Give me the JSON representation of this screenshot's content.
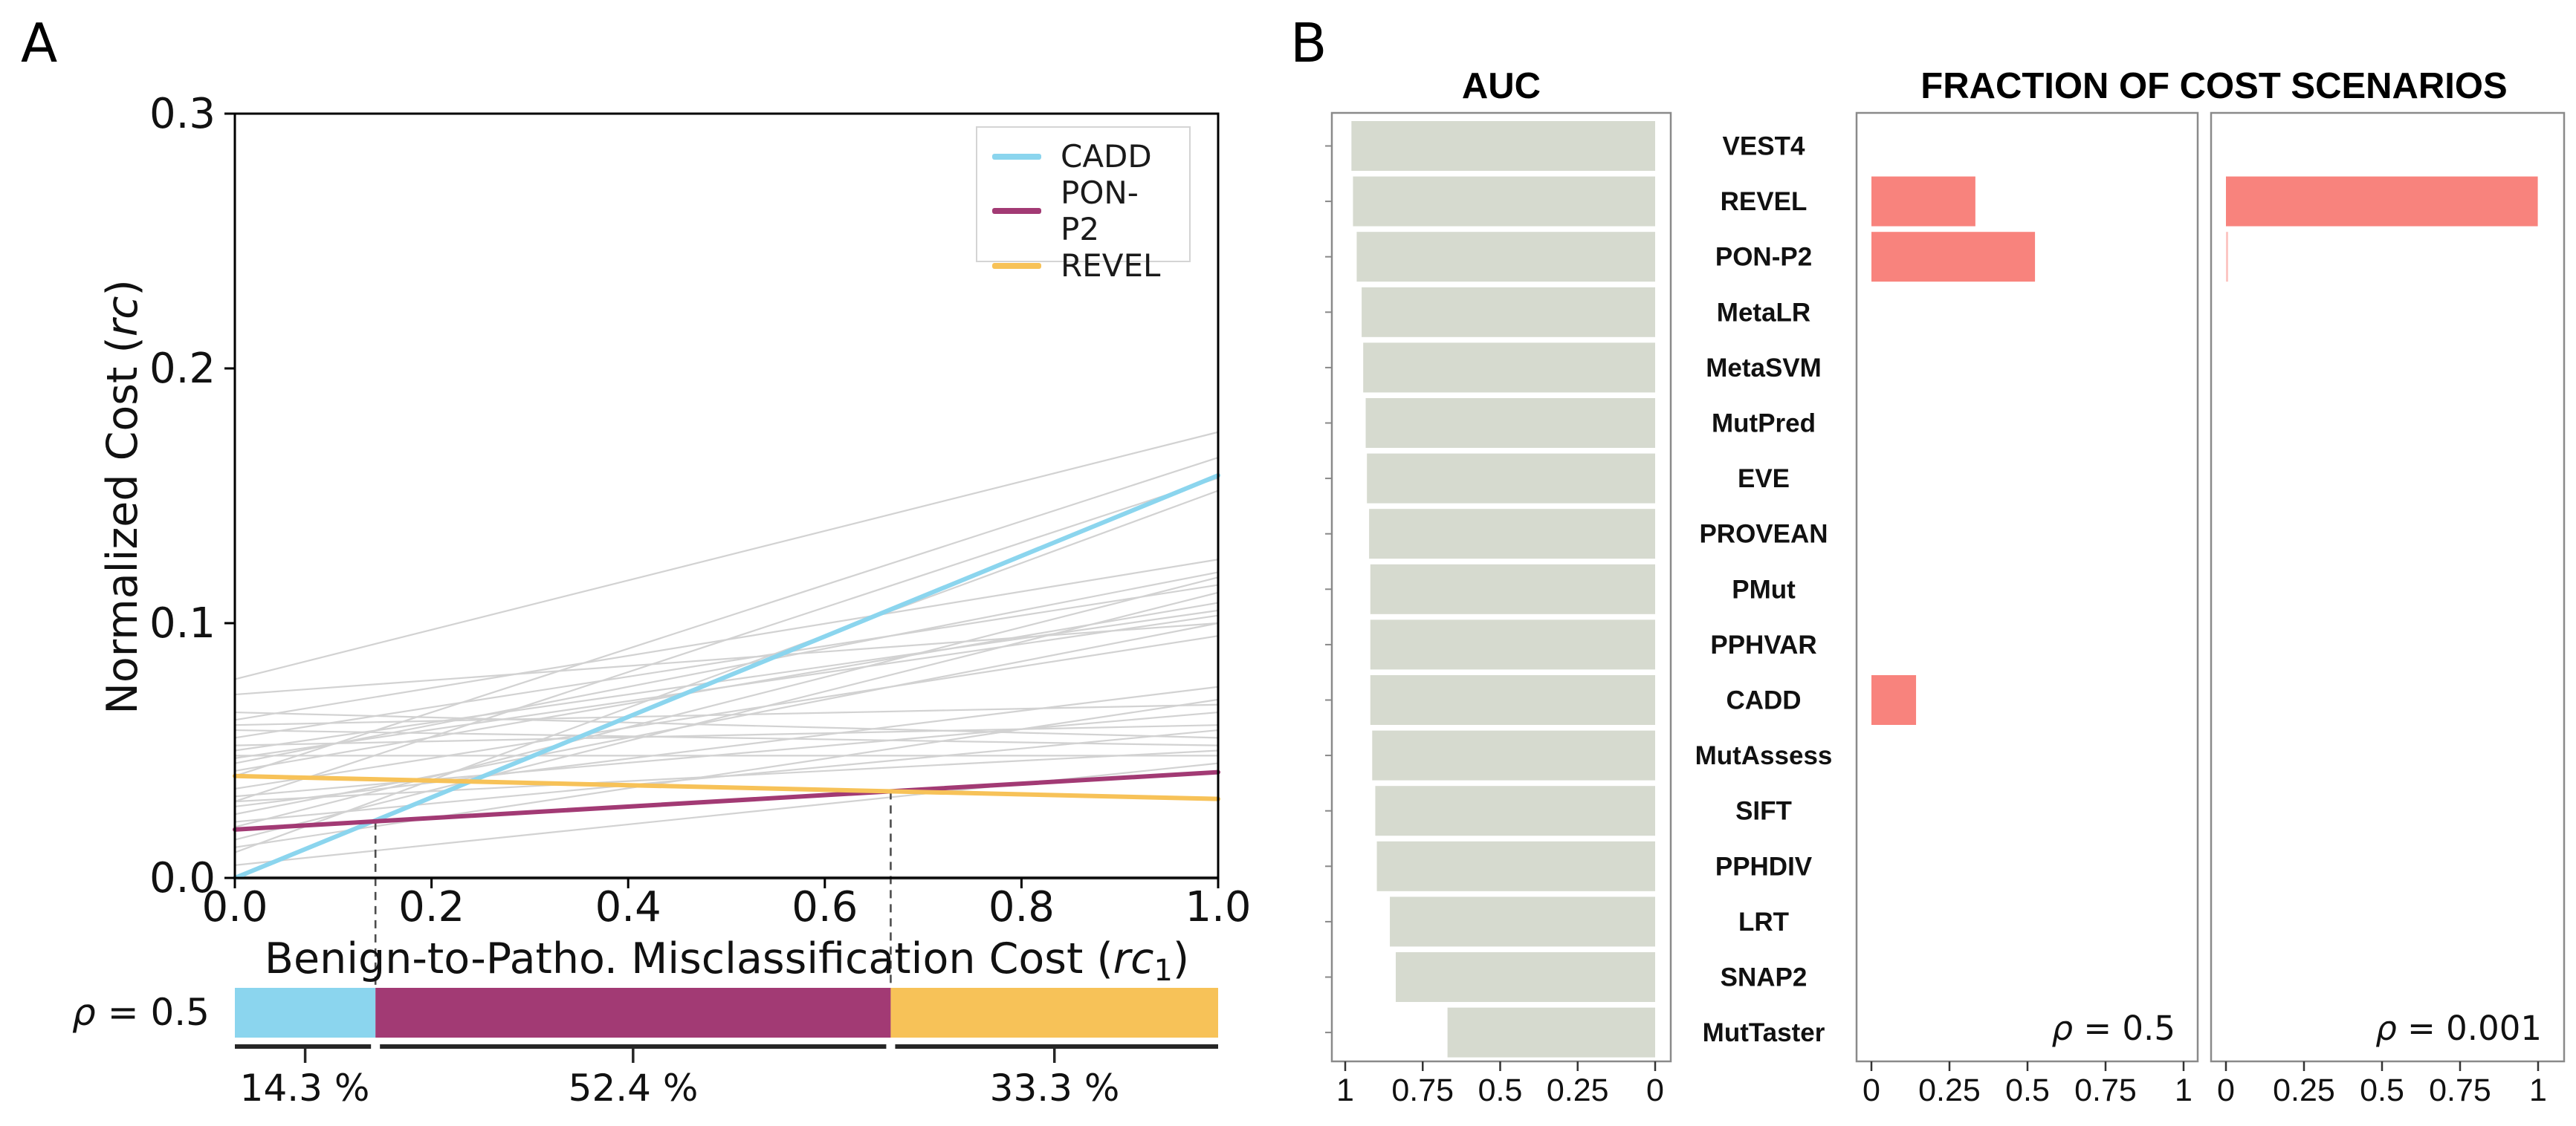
{
  "figure": {
    "panel_a_label": "A",
    "panel_b_label": "B"
  },
  "colors": {
    "cadd": "#8BD5EE",
    "pon_p2": "#A23A74",
    "revel": "#F7C258",
    "salmon": "#F8837D",
    "salmon_faint": "#FADCDA",
    "auc_bar": "#D6DACF",
    "frame_gray": "#8A8A8A",
    "gray_line": "#D2D2D2",
    "zero_line": "#ACACAC",
    "dashed": "#4D4D4D",
    "ruler": "#262626",
    "black": "#000000"
  },
  "panel_a": {
    "ylabel_pre": "Normalized Cost (",
    "ylabel_italic": "rc",
    "ylabel_post": ")",
    "xlabel_pre": "Benign-to-Patho. Misclassification Cost (",
    "xlabel_italic": "rc",
    "xlabel_sub": "1",
    "xlabel_post": ")"
  },
  "panel_b": {
    "auc_title": "AUC",
    "fraction_title": "FRACTION OF COST SCENARIOS"
  },
  "chart_data": [
    {
      "type": "line",
      "title": "",
      "xlabel": "Benign-to-Patho. Misclassification Cost (rc1)",
      "ylabel": "Normalized Cost (rc)",
      "xlim": [
        0,
        1
      ],
      "ylim": [
        0,
        0.3
      ],
      "xticks": [
        0,
        0.2,
        0.4,
        0.6,
        0.8,
        1.0
      ],
      "xtick_labels": [
        "0.0",
        "0.2",
        "0.4",
        "0.6",
        "0.8",
        "1.0"
      ],
      "yticks": [
        0,
        0.1,
        0.2,
        0.3
      ],
      "ytick_labels": [
        "0.0",
        "0.1",
        "0.2",
        "0.3"
      ],
      "legend_position": "upper right",
      "grid": false,
      "series": [
        {
          "name": "CADD",
          "color_key": "cadd",
          "x": [
            0,
            1
          ],
          "y": [
            0.0,
            0.158
          ]
        },
        {
          "name": "PON-P2",
          "color_key": "pon_p2",
          "x": [
            0,
            1
          ],
          "y": [
            0.019,
            0.0415
          ]
        },
        {
          "name": "REVEL",
          "color_key": "revel",
          "x": [
            0,
            1
          ],
          "y": [
            0.04,
            0.031
          ]
        }
      ],
      "background_lines_y0_y1": [
        [
          0.078,
          0.175
        ],
        [
          0.072,
          0.1
        ],
        [
          0.065,
          0.055
        ],
        [
          0.062,
          0.125
        ],
        [
          0.058,
          0.052
        ],
        [
          0.055,
          0.115
        ],
        [
          0.052,
          0.06
        ],
        [
          0.05,
          0.105
        ],
        [
          0.048,
          0.048
        ],
        [
          0.045,
          0.12
        ],
        [
          0.042,
          0.108
        ],
        [
          0.04,
          0.165
        ],
        [
          0.035,
          0.095
        ],
        [
          0.032,
          0.065
        ],
        [
          0.03,
          0.157
        ],
        [
          0.028,
          0.075
        ],
        [
          0.025,
          0.1
        ],
        [
          0.022,
          0.058
        ],
        [
          0.015,
          0.112
        ],
        [
          0.012,
          0.07
        ],
        [
          0.01,
          0.152
        ],
        [
          0.005,
          0.045
        ],
        [
          0.047,
          0.103
        ],
        [
          0.03,
          0.05
        ],
        [
          0.06,
          0.068
        ],
        [
          0.02,
          0.118
        ],
        [
          0.0,
          0.0
        ]
      ],
      "crossovers": [
        {
          "x": 0.143,
          "y": 0.0222
        },
        {
          "x": 0.667,
          "y": 0.034
        }
      ],
      "rho_bar": {
        "label_italic": "ρ",
        "label_rest": " = 0.5",
        "segments": [
          {
            "tool": "CADD",
            "color_key": "cadd",
            "from": 0,
            "to": 0.143,
            "pct": "14.3 %"
          },
          {
            "tool": "PON-P2",
            "color_key": "pon_p2",
            "from": 0.143,
            "to": 0.667,
            "pct": "52.4 %"
          },
          {
            "tool": "REVEL",
            "color_key": "revel",
            "from": 0.667,
            "to": 1.0,
            "pct": "33.3 %"
          }
        ]
      }
    },
    {
      "type": "bar",
      "title": "AUC",
      "orientation": "horizontal",
      "axis_reversed": true,
      "categories": [
        "VEST4",
        "REVEL",
        "PON-P2",
        "MetaLR",
        "MetaSVM",
        "MutPred",
        "EVE",
        "PROVEAN",
        "PMut",
        "PPHVAR",
        "CADD",
        "MutAssess",
        "SIFT",
        "PPHDIV",
        "LRT",
        "SNAP2",
        "MutTaster"
      ],
      "values": [
        0.98,
        0.975,
        0.963,
        0.947,
        0.942,
        0.934,
        0.93,
        0.923,
        0.919,
        0.919,
        0.919,
        0.913,
        0.903,
        0.898,
        0.856,
        0.837,
        0.67
      ],
      "xticks": [
        1,
        0.75,
        0.5,
        0.25,
        0
      ],
      "xtick_labels": [
        "1",
        "0.75",
        "0.5",
        "0.25",
        "0"
      ],
      "xlim": [
        1.05,
        0
      ]
    },
    {
      "type": "bar",
      "title": "FRACTION OF COST SCENARIOS",
      "orientation": "horizontal",
      "annotation_italic": "ρ",
      "annotation_rest": " = 0.5",
      "categories": [
        "VEST4",
        "REVEL",
        "PON-P2",
        "MetaLR",
        "MetaSVM",
        "MutPred",
        "EVE",
        "PROVEAN",
        "PMut",
        "PPHVAR",
        "CADD",
        "MutAssess",
        "SIFT",
        "PPHDIV",
        "LRT",
        "SNAP2",
        "MutTaster"
      ],
      "values": [
        0,
        0.333,
        0.524,
        0,
        0,
        0,
        0,
        0,
        0,
        0,
        0.143,
        0,
        0,
        0,
        0,
        0,
        0
      ],
      "xticks": [
        0,
        0.25,
        0.5,
        0.75,
        1
      ],
      "xtick_labels": [
        "0",
        "0.25",
        "0.5",
        "0.75",
        "1"
      ],
      "xlim": [
        0,
        1.05
      ]
    },
    {
      "type": "bar",
      "title": "FRACTION OF COST SCENARIOS",
      "orientation": "horizontal",
      "annotation_italic": "ρ",
      "annotation_rest": " = 0.001",
      "categories": [
        "VEST4",
        "REVEL",
        "PON-P2",
        "MetaLR",
        "MetaSVM",
        "MutPred",
        "EVE",
        "PROVEAN",
        "PMut",
        "PPHVAR",
        "CADD",
        "MutAssess",
        "SIFT",
        "PPHDIV",
        "LRT",
        "SNAP2",
        "MutTaster"
      ],
      "values": [
        0,
        0.999,
        0.004,
        0,
        0,
        0,
        0,
        0,
        0,
        0,
        0,
        0,
        0,
        0,
        0,
        0,
        0
      ],
      "xticks": [
        0,
        0.25,
        0.5,
        0.75,
        1
      ],
      "xtick_labels": [
        "0",
        "0.25",
        "0.5",
        "0.75",
        "1"
      ],
      "xlim": [
        0,
        1.05
      ]
    }
  ]
}
